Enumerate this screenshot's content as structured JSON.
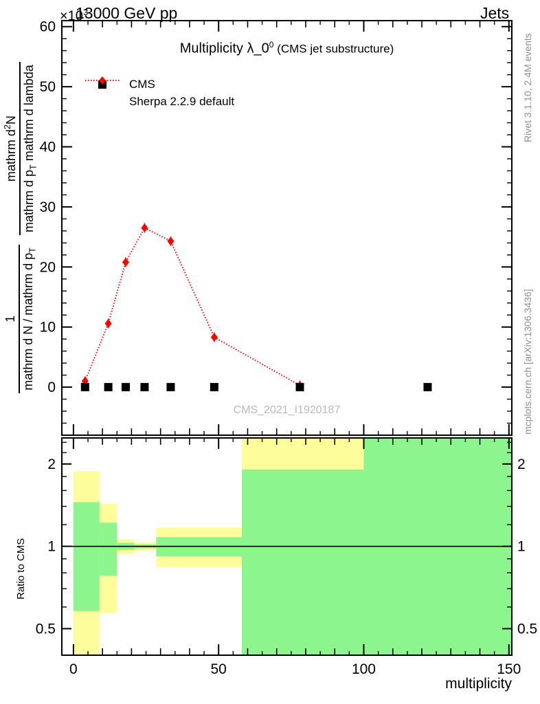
{
  "header": {
    "left": "13000 GeV pp",
    "right": "Jets",
    "power_prefix": "×10",
    "power_exp": "3"
  },
  "title": {
    "main": "Multiplicity λ_0",
    "sup": "0",
    "suffix": " (CMS jet substructure)"
  },
  "legend": [
    {
      "label": "CMS",
      "marker": "black-square"
    },
    {
      "label": "Sherpa 2.2.9 default",
      "marker": "red-dotted-diamond"
    }
  ],
  "ylabel": {
    "frac1": {
      "num": "1",
      "den_pre": "mathrm d N / mathrm d p",
      "den_sub": "T"
    },
    "frac2": {
      "num_pre": "mathrm d",
      "num_sup": "2",
      "num_post": "N",
      "den_pre": "mathrm d p",
      "den_sub": "T",
      "den_post": " mathrm d lambda"
    }
  },
  "ratio_label": "Ratio to CMS",
  "xlabel": "multiplicity",
  "watermark": "CMS_2021_I1920187",
  "side_text": {
    "top": "Rivet 3.1.10,  2.4M events",
    "bottom": "mcplots.cern.ch [arXiv:1306.3436]"
  },
  "chart_data": {
    "type": "scatter",
    "title": "Multiplicity lambda_0^0 (CMS jet substructure)",
    "xlabel": "multiplicity",
    "xlim": [
      -4,
      151
    ],
    "xticks": [
      0,
      50,
      100,
      150
    ],
    "x_medium_step": 10,
    "x_minor_step": 5,
    "main_panel": {
      "ylabel": "1/(mathrm d N / mathrm d p_T)  mathrm d^2 N /(mathrm d p_T mathrm d lambda)",
      "y_scale_factor": "x10^3",
      "ylim": [
        -8,
        61
      ],
      "yticks": [
        0,
        10,
        20,
        30,
        40,
        50,
        60
      ],
      "y_minor_step": 2,
      "grid": false,
      "legend_position": "top-left",
      "series": [
        {
          "name": "CMS",
          "marker": "square",
          "color": "#000000",
          "line": "none",
          "x": [
            4,
            12,
            18,
            24.5,
            33.5,
            48.5,
            78,
            122
          ],
          "y": [
            0,
            0,
            0,
            0,
            0,
            0,
            0,
            0
          ]
        },
        {
          "name": "Sherpa 2.2.9 default",
          "marker": "diamond",
          "color": "#ff0000",
          "line": "dotted",
          "x": [
            4,
            12,
            18,
            24.5,
            33.5,
            48.5,
            78
          ],
          "y": [
            1.0,
            10.6,
            20.8,
            26.5,
            24.3,
            8.3,
            0.3
          ]
        }
      ]
    },
    "ratio_panel": {
      "ylabel": "Ratio to CMS",
      "scale": "log",
      "ylim": [
        0.4,
        2.49
      ],
      "yticks": [
        0.5,
        1,
        2
      ],
      "y_minor": [
        0.4,
        0.6,
        0.7,
        0.8,
        0.9,
        1.2,
        1.4,
        1.6,
        1.8,
        2.2,
        2.4
      ],
      "reference_line": 1,
      "band_colors": {
        "yellow": "#fdfd9c",
        "green": "#8df58d"
      },
      "bands": [
        {
          "x": [
            0,
            9
          ],
          "yellow": [
            0.4,
            1.88
          ],
          "green": [
            0.58,
            1.45
          ]
        },
        {
          "x": [
            9,
            15
          ],
          "yellow": [
            0.57,
            1.43
          ],
          "green": [
            0.78,
            1.22
          ]
        },
        {
          "x": [
            15,
            21
          ],
          "yellow": [
            0.94,
            1.06
          ],
          "green": [
            0.97,
            1.03
          ]
        },
        {
          "x": [
            21,
            28.5
          ],
          "yellow": [
            0.965,
            1.035
          ],
          "green": [
            0.985,
            1.015
          ]
        },
        {
          "x": [
            28.5,
            58
          ],
          "yellow": [
            0.84,
            1.17
          ],
          "green": [
            0.92,
            1.08
          ]
        },
        {
          "x": [
            58,
            100
          ],
          "yellow": [
            0.4,
            2.49
          ],
          "green": [
            0.4,
            1.91
          ]
        },
        {
          "x": [
            100,
            150
          ],
          "yellow": null,
          "green": [
            0.4,
            2.49
          ]
        }
      ]
    }
  }
}
